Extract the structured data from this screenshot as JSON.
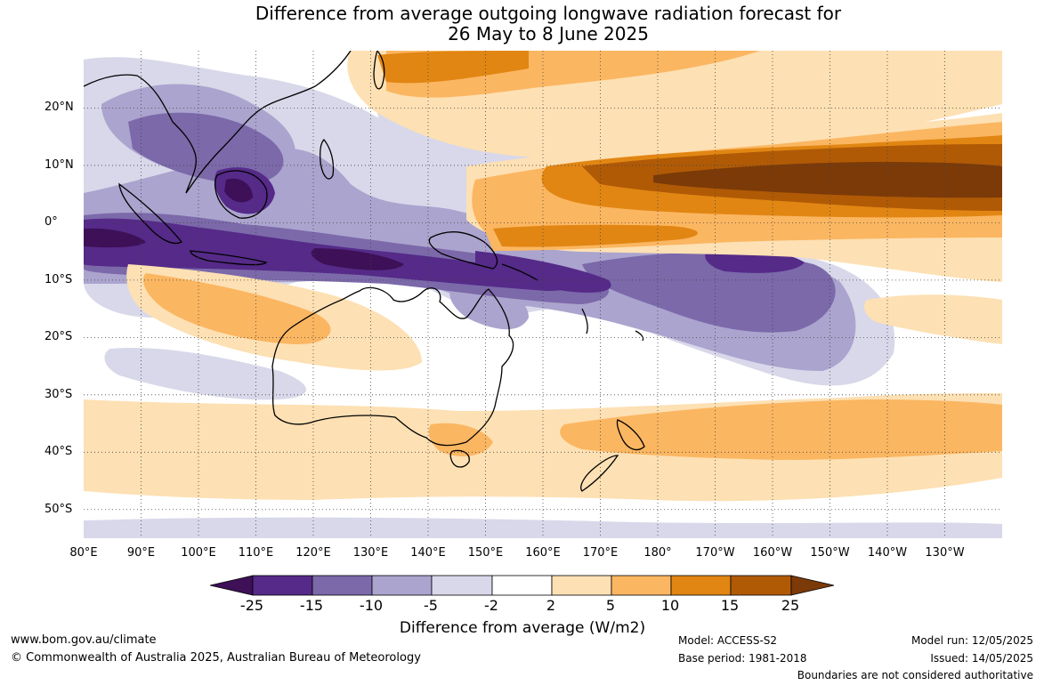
{
  "title_line1": "Difference from average outgoing longwave radiation forecast for",
  "title_line2": "26 May to 8 June 2025",
  "map": {
    "lon_range": [
      80,
      240
    ],
    "lat_range": [
      -55,
      30
    ],
    "lat_labels": [
      "20°N",
      "10°N",
      "0°",
      "10°S",
      "20°S",
      "30°S",
      "40°S",
      "50°S"
    ],
    "lon_labels": [
      "80°E",
      "90°E",
      "100°E",
      "110°E",
      "120°E",
      "130°E",
      "140°E",
      "150°E",
      "160°E",
      "170°E",
      "180°",
      "170°W",
      "160°W",
      "150°W",
      "140°W",
      "130°W"
    ],
    "colors": {
      "neg25": "#3d1057",
      "neg15": "#552a88",
      "neg10": "#7b69aa",
      "neg5": "#aba4ce",
      "neg2": "#d8d8ea",
      "neutral": "#ffffff",
      "pos2": "#fde0b3",
      "pos5": "#fbb661",
      "pos10": "#e18613",
      "pos15": "#b05a06",
      "pos25": "#7c3a08"
    }
  },
  "colorbar": {
    "ticks": [
      "-25",
      "-15",
      "-10",
      "-5",
      "-2",
      "2",
      "5",
      "10",
      "15",
      "25"
    ],
    "title": "Difference from average (W/m2)"
  },
  "footer": {
    "url": "www.bom.gov.au/climate",
    "copyright": "© Commonwealth of Australia 2025, Australian Bureau of Meteorology",
    "model": "Model: ACCESS-S2",
    "base_period": "Base period: 1981-2018",
    "model_run": "Model run: 12/05/2025",
    "issued": "Issued: 14/05/2025",
    "disclaimer": "Boundaries are not considered authoritative"
  }
}
